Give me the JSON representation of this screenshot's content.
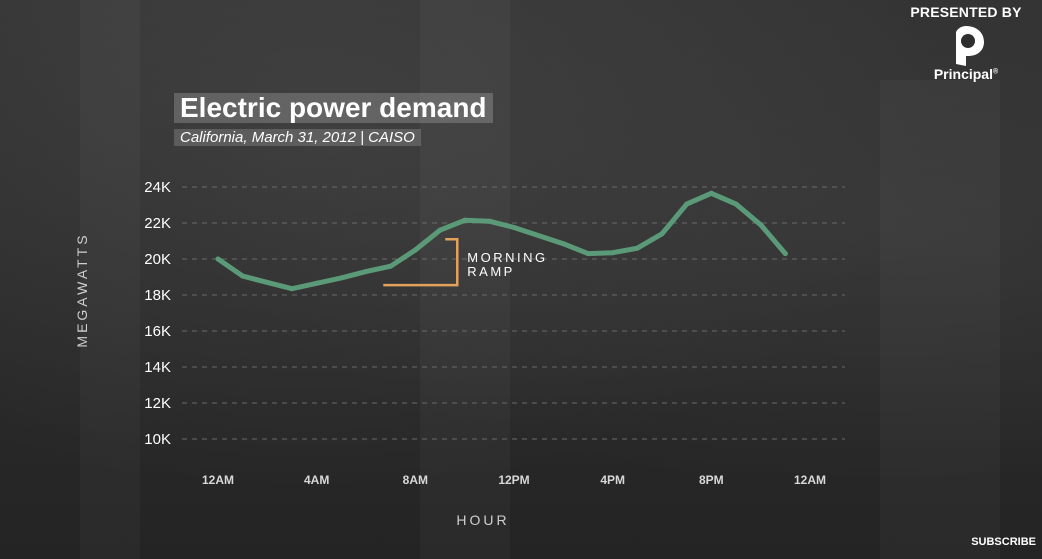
{
  "brand": {
    "presented_by": "PRESENTED BY",
    "name": "Principal",
    "registered_mark": "®"
  },
  "subscribe_label": "SUBSCRIBE",
  "chart_data": {
    "type": "line",
    "title": "Electric power demand",
    "subtitle": "California, March 31, 2012 | CAISO",
    "ylabel": "MEGAWATTS",
    "xlabel": "HOUR",
    "ylim": [
      10000,
      24000
    ],
    "yticks": [
      10000,
      12000,
      14000,
      16000,
      18000,
      20000,
      22000,
      24000
    ],
    "ytick_labels": [
      "10K",
      "12K",
      "14K",
      "16K",
      "18K",
      "20K",
      "22K",
      "24K"
    ],
    "xlim": [
      0,
      24
    ],
    "xticks": [
      0,
      4,
      8,
      12,
      16,
      20,
      24
    ],
    "xtick_labels": [
      "12AM",
      "4AM",
      "8AM",
      "12PM",
      "4PM",
      "8PM",
      "12AM"
    ],
    "grid": "horizontal dashed",
    "series": [
      {
        "color": "#5b9a78",
        "x": [
          0,
          1,
          2,
          3,
          4,
          5,
          6,
          7,
          8,
          9,
          10,
          11,
          12,
          13,
          14,
          15,
          16,
          17,
          18,
          19,
          20,
          21,
          22,
          23
        ],
        "y": [
          20000,
          19050,
          18700,
          18350,
          18650,
          18950,
          19300,
          19600,
          20500,
          21600,
          22150,
          22100,
          21750,
          21300,
          20850,
          20300,
          20350,
          20600,
          21400,
          23050,
          23650,
          23050,
          21900,
          20300
        ]
      }
    ],
    "annotations": [
      {
        "text": [
          "MORNING",
          "RAMP"
        ],
        "color": "#e3a25c",
        "x_start": 6.7,
        "x_end": 9.7,
        "y_low": 18550,
        "y_high": 21100
      }
    ]
  }
}
